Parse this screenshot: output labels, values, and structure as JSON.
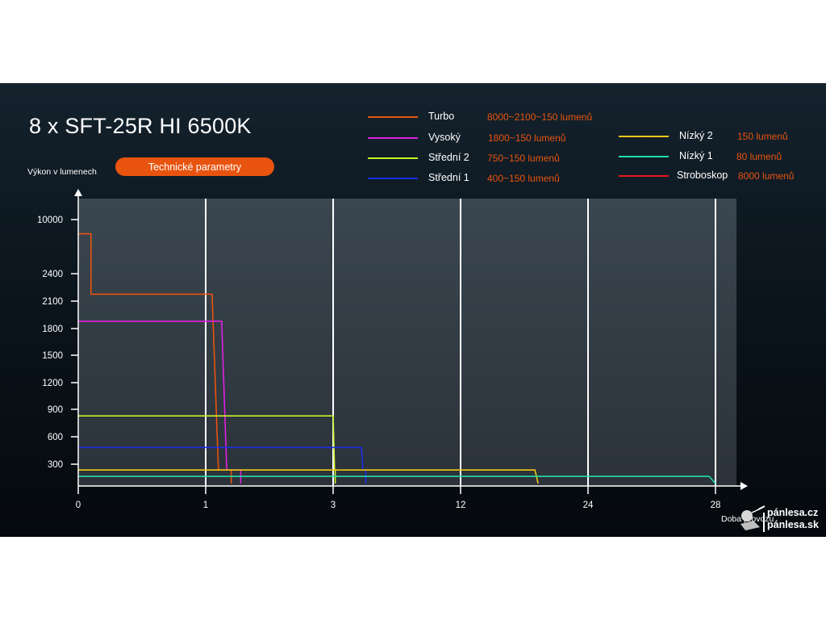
{
  "chart_data": {
    "type": "line",
    "title": "8 x SFT-25R HI 6500K",
    "ylabel": "Výkon v lumenech",
    "xlabel": "Doba provozu",
    "x_tick_labels": [
      "0",
      "1",
      "3",
      "12",
      "24",
      "28"
    ],
    "y_tick_labels": [
      "10000",
      "2400",
      "2100",
      "1800",
      "1500",
      "1200",
      "900",
      "600",
      "300"
    ],
    "x_axis_note": "non-linear hour scale: ticks are 0, 1, 3, 12, 24, 28",
    "y_axis_note": "non-linear: break between 2400 and 10000",
    "grid": "vertical lines at x ticks",
    "legend_position": "top-right",
    "series": [
      {
        "name": "Turbo",
        "value_label": "8000~2100~150 lumenů",
        "color": "#e8540f",
        "points": [
          [
            0,
            8000
          ],
          [
            0.1,
            8000
          ],
          [
            0.1,
            2100
          ],
          [
            1.1,
            2100
          ],
          [
            1.2,
            150
          ],
          [
            1.4,
            150
          ],
          [
            1.4,
            0
          ]
        ]
      },
      {
        "name": "Vysoký",
        "value_label": "1800~150 lumenů",
        "color": "#e020e0",
        "points": [
          [
            0,
            1800
          ],
          [
            1.25,
            1800
          ],
          [
            1.33,
            150
          ],
          [
            1.55,
            150
          ],
          [
            1.55,
            0
          ]
        ]
      },
      {
        "name": "Střední 2",
        "value_label": "750~150 lumenů",
        "color": "#c8f028",
        "points": [
          [
            0,
            750
          ],
          [
            3.0,
            750
          ],
          [
            3.1,
            150
          ],
          [
            3.15,
            150
          ],
          [
            3.15,
            0
          ]
        ]
      },
      {
        "name": "Střední 1",
        "value_label": "400~150 lumenů",
        "color": "#1a2ee8",
        "points": [
          [
            0,
            400
          ],
          [
            5.0,
            400
          ],
          [
            5.1,
            150
          ],
          [
            5.3,
            150
          ],
          [
            5.3,
            0
          ]
        ]
      },
      {
        "name": "Nízký 2",
        "value_label": "150 lumenů",
        "color": "#f0c814",
        "points": [
          [
            0,
            150
          ],
          [
            19.0,
            150
          ],
          [
            19.3,
            0
          ]
        ]
      },
      {
        "name": "Nízký 1",
        "value_label": "80 lumenů",
        "color": "#20e0a8",
        "points": [
          [
            0,
            80
          ],
          [
            27.8,
            80
          ],
          [
            28,
            0
          ]
        ]
      },
      {
        "name": "Stroboskop",
        "value_label": "8000 lumenů",
        "color": "#e81818",
        "points": []
      }
    ]
  },
  "ui": {
    "params_button_label": "Technické parametry",
    "watermark": {
      "line1": "pánlesa.cz",
      "line2": "pánlesa.sk"
    }
  }
}
